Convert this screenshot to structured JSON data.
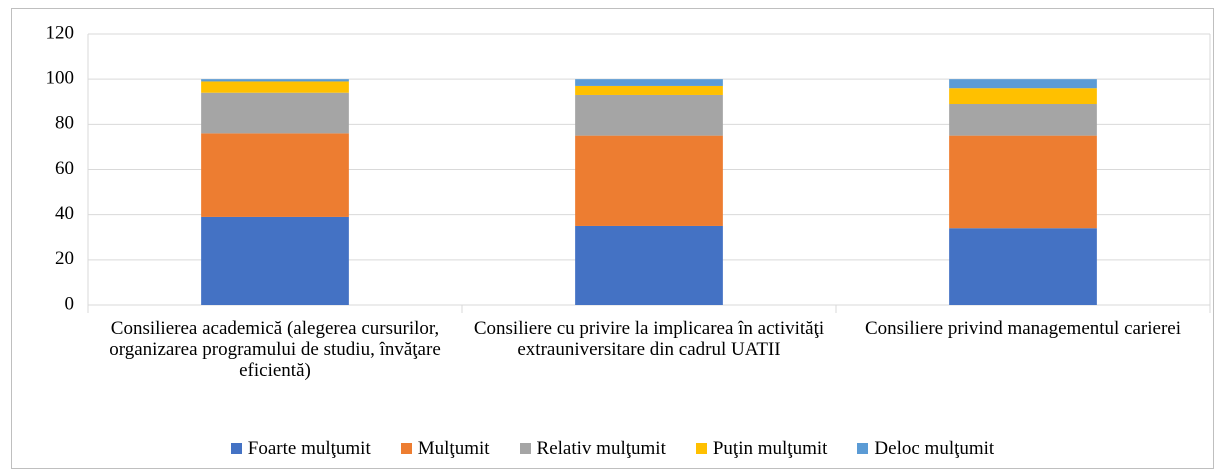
{
  "chart_data": {
    "type": "stacked_bar",
    "categories": [
      "Consilierea academică (alegerea cursurilor, organizarea programului de studiu, învăţare eficientă)",
      "Consiliere cu privire la implicarea în activităţi extrauniversitare din cadrul UATII",
      "Consiliere privind managementul carierei"
    ],
    "series": [
      {
        "name": "Foarte mulţumit",
        "color": "#4472c4",
        "values": [
          39,
          35,
          34
        ]
      },
      {
        "name": "Mulţumit",
        "color": "#ed7d31",
        "values": [
          37,
          40,
          41
        ]
      },
      {
        "name": "Relativ mulţumit",
        "color": "#a5a5a5",
        "values": [
          18,
          18,
          14
        ]
      },
      {
        "name": "Puţin mulţumit",
        "color": "#ffc000",
        "values": [
          5,
          4,
          7
        ]
      },
      {
        "name": "Deloc mulţumit",
        "color": "#5b9bd5",
        "values": [
          1,
          3,
          4
        ]
      }
    ],
    "ylim": [
      0,
      120
    ],
    "yticks": [
      0,
      20,
      40,
      60,
      80,
      100,
      120
    ],
    "grid": true,
    "legend": "bottom"
  }
}
